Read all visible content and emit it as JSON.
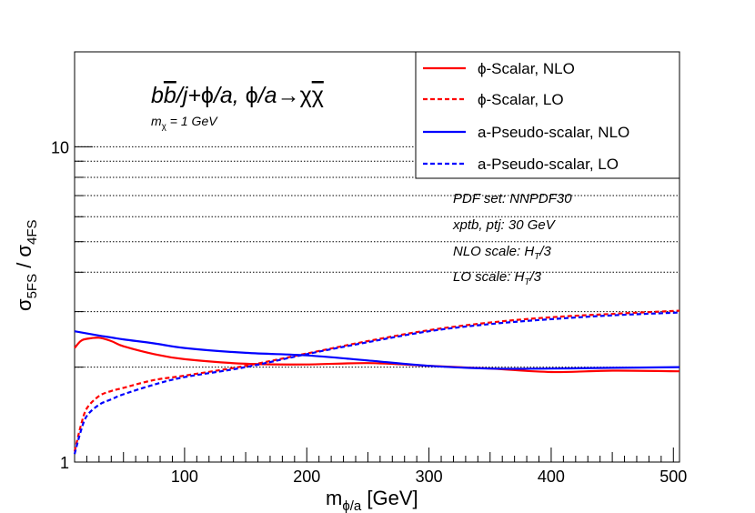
{
  "chart_data": {
    "type": "line",
    "title_parts": {
      "pre": "b",
      "bbar": "b",
      "mid": "/j+",
      "phi1": "ϕ",
      "mid2": "/a, ",
      "phi2": "ϕ",
      "mid3": "/a",
      "arrow": "→",
      "chi": "χ",
      "chibar": "χ"
    },
    "subtitle": {
      "m": "m",
      "sub": "χ",
      "rest": " = 1 GeV"
    },
    "xlabel": {
      "main": "m",
      "sub": "ϕ/a",
      "unit": " [GeV]"
    },
    "ylabel": {
      "s1": "σ",
      "sub1": "5FS",
      "slash": " / ",
      "s2": "σ",
      "sub2": "4FS"
    },
    "x_ticks": [
      100,
      200,
      300,
      400,
      500
    ],
    "y_ticks": [
      1,
      10
    ],
    "xlim": [
      10,
      505
    ],
    "ylim": [
      1,
      20
    ],
    "y_scale": "log",
    "gridlines_y": [
      2,
      3,
      4,
      5,
      6,
      7,
      8,
      9,
      10
    ],
    "annotations": {
      "pdf": "PDF set: NNPDF30",
      "cuts": "xptb, ptj: 30 GeV",
      "nlo_pre": "NLO scale: H",
      "nlo_sub": "T",
      "nlo_post": "/3",
      "lo_pre": "LO scale: H",
      "lo_sub": "T",
      "lo_post": "/3"
    },
    "legend_position": "top-right",
    "series": [
      {
        "name": "ϕ-Scalar, NLO",
        "color": "#ff0000",
        "dash": "solid",
        "x": [
          10,
          15,
          20,
          30,
          40,
          50,
          75,
          100,
          150,
          200,
          250,
          300,
          350,
          400,
          450,
          505
        ],
        "y": [
          2.3,
          2.42,
          2.46,
          2.48,
          2.42,
          2.33,
          2.2,
          2.12,
          2.05,
          2.04,
          2.06,
          2.02,
          1.98,
          1.93,
          1.95,
          1.94
        ]
      },
      {
        "name": "ϕ-Scalar, LO",
        "color": "#ff0000",
        "dash": "dashed",
        "x": [
          10,
          15,
          20,
          30,
          40,
          50,
          75,
          100,
          150,
          200,
          250,
          300,
          350,
          400,
          450,
          505
        ],
        "y": [
          1.08,
          1.3,
          1.48,
          1.62,
          1.68,
          1.72,
          1.82,
          1.88,
          2.02,
          2.21,
          2.42,
          2.62,
          2.77,
          2.88,
          2.95,
          3.02
        ]
      },
      {
        "name": "a-Pseudo-scalar, NLO",
        "color": "#0000ff",
        "dash": "solid",
        "x": [
          10,
          30,
          50,
          75,
          100,
          150,
          200,
          250,
          300,
          350,
          400,
          450,
          505
        ],
        "y": [
          2.6,
          2.52,
          2.45,
          2.38,
          2.3,
          2.22,
          2.18,
          2.1,
          2.02,
          1.98,
          1.98,
          1.99,
          2.0
        ]
      },
      {
        "name": "a-Pseudo-scalar, LO",
        "color": "#0000ff",
        "dash": "dashed",
        "x": [
          10,
          15,
          20,
          30,
          40,
          50,
          75,
          100,
          150,
          200,
          250,
          300,
          350,
          400,
          450,
          505
        ],
        "y": [
          1.06,
          1.25,
          1.4,
          1.52,
          1.58,
          1.64,
          1.76,
          1.86,
          2.0,
          2.2,
          2.4,
          2.6,
          2.74,
          2.84,
          2.92,
          2.98
        ]
      }
    ]
  }
}
